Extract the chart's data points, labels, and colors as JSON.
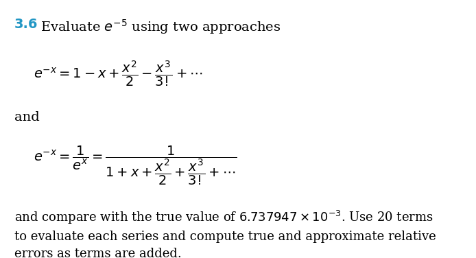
{
  "background_color": "#ffffff",
  "number_color": "#2196c4",
  "number_text": "3.6",
  "title_text": "Evaluate $e^{-5}$ using two approaches",
  "eq1": "$e^{-x} = 1 - x + \\dfrac{x^2}{2} - \\dfrac{x^3}{3!} + \\cdots$",
  "and_text": "and",
  "eq2_left": "$e^{-x} = \\dfrac{1}{e^x} = $",
  "eq2_frac": "$\\dfrac{1}{1 + x + \\dfrac{x^2}{2} + \\dfrac{x^3}{3!} + \\cdots}$",
  "body_text": "and compare with the true value of $6.737947 \\times 10^{-3}$. Use 20 terms\nto evaluate each series and compute true and approximate relative\nerrors as terms are added.",
  "figwidth": 6.94,
  "figheight": 3.76,
  "dpi": 100
}
